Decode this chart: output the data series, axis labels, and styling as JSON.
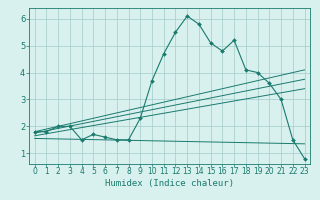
{
  "xlabel": "Humidex (Indice chaleur)",
  "bg_color": "#d8f0ee",
  "line_color": "#1a7a6e",
  "grid_color": "#a0ccc8",
  "xlim": [
    -0.5,
    23.5
  ],
  "ylim": [
    0.6,
    6.4
  ],
  "xticks": [
    0,
    1,
    2,
    3,
    4,
    5,
    6,
    7,
    8,
    9,
    10,
    11,
    12,
    13,
    14,
    15,
    16,
    17,
    18,
    19,
    20,
    21,
    22,
    23
  ],
  "yticks": [
    1,
    2,
    3,
    4,
    5,
    6
  ],
  "series1_x": [
    0,
    1,
    2,
    3,
    4,
    5,
    6,
    7,
    8,
    9,
    10,
    11,
    12,
    13,
    14,
    15,
    16,
    17,
    18,
    19,
    20,
    21,
    22,
    23
  ],
  "series1_y": [
    1.8,
    1.8,
    2.0,
    2.0,
    1.5,
    1.7,
    1.6,
    1.5,
    1.5,
    2.3,
    3.7,
    4.7,
    5.5,
    6.1,
    5.8,
    5.1,
    4.8,
    5.2,
    4.1,
    4.0,
    3.6,
    3.0,
    1.5,
    0.8
  ],
  "series2_x": [
    0,
    23
  ],
  "series2_y": [
    1.8,
    4.1
  ],
  "series3_x": [
    0,
    23
  ],
  "series3_y": [
    1.75,
    3.75
  ],
  "series4_x": [
    0,
    23
  ],
  "series4_y": [
    1.65,
    3.4
  ],
  "series5_x": [
    0,
    23
  ],
  "series5_y": [
    1.55,
    1.35
  ],
  "marker_indices": [
    0,
    1,
    2,
    3,
    4,
    5,
    6,
    7,
    8,
    9,
    10,
    11,
    12,
    13,
    14,
    15,
    16,
    17,
    18,
    19,
    20,
    21,
    22,
    23
  ],
  "fontsize_tick": 5.5,
  "fontsize_xlabel": 6.5
}
